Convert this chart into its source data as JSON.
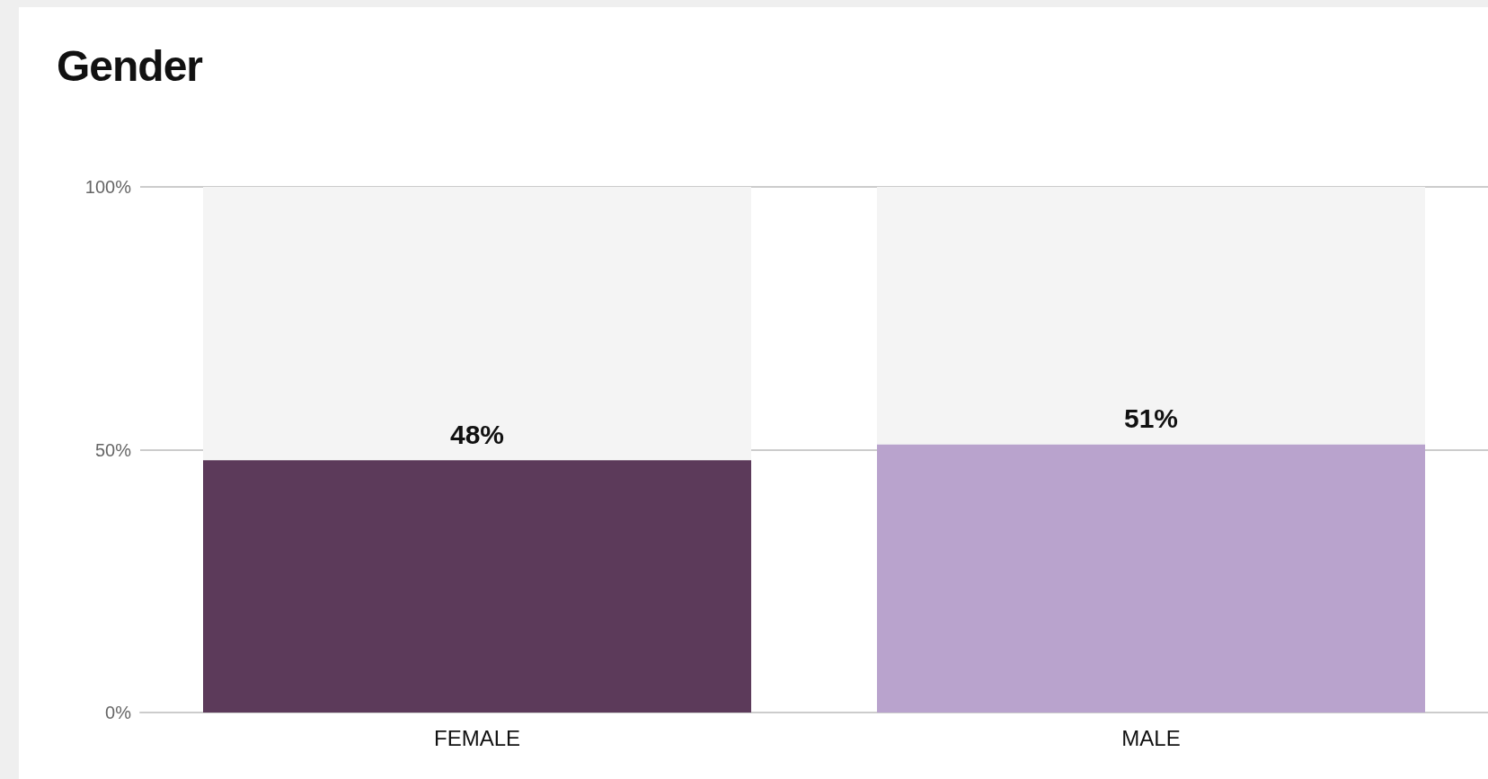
{
  "chart_data": {
    "type": "bar",
    "title": "Gender",
    "categories": [
      "FEMALE",
      "MALE"
    ],
    "values": [
      48,
      51
    ],
    "colors": [
      "#5c3a5a",
      "#b9a3cd"
    ],
    "value_labels": [
      "48%",
      "51%"
    ],
    "ylim": [
      0,
      100
    ],
    "yticks": [
      {
        "value": 0,
        "label": "0%"
      },
      {
        "value": 50,
        "label": "50%"
      },
      {
        "value": 100,
        "label": "100%"
      }
    ],
    "grid": "y"
  }
}
